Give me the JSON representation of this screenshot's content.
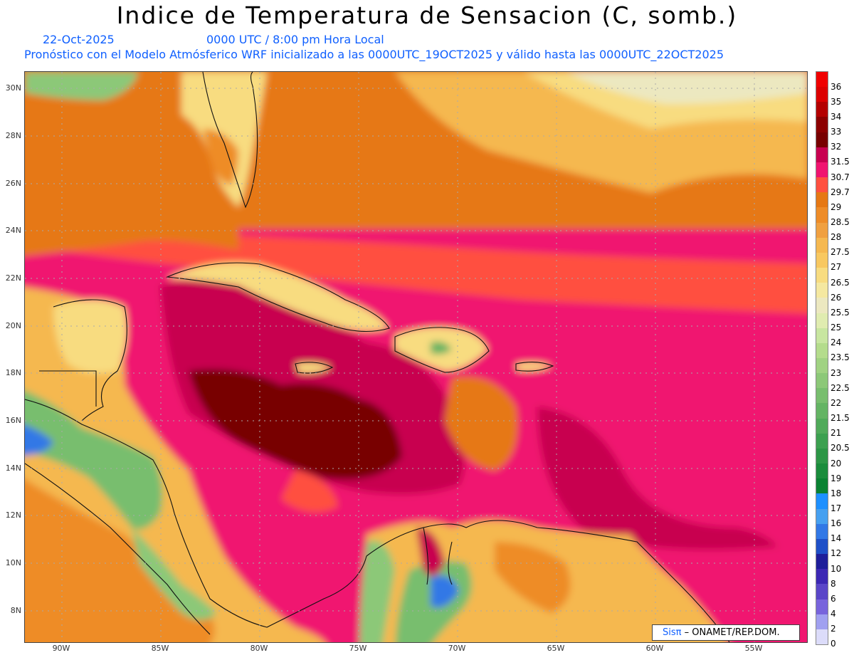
{
  "header": {
    "title": "Indice de Temperatura de Sensacion (C, somb.)",
    "date": "22-Oct-2025",
    "time": "0000 UTC / 8:00 pm Hora Local",
    "info": "Pronóstico con el Modelo Atmósferico WRF inicializado a las 0000UTC_19OCT2025 y válido hasta las  0000UTC_22OCT2025"
  },
  "map": {
    "lat_labels": [
      "30N",
      "28N",
      "26N",
      "24N",
      "22N",
      "20N",
      "18N",
      "16N",
      "14N",
      "12N",
      "10N",
      "8N"
    ],
    "lon_labels": [
      "90W",
      "85W",
      "80W",
      "75W",
      "70W",
      "65W",
      "60W",
      "55W"
    ],
    "gridlines": true
  },
  "colorbar": {
    "labels": [
      "36",
      "35",
      "34",
      "33",
      "32",
      "31.5",
      "30.7",
      "29.7",
      "29",
      "28.5",
      "28",
      "27.5",
      "27",
      "26.5",
      "26",
      "25.5",
      "25",
      "24",
      "23.5",
      "23",
      "22.5",
      "22",
      "21.5",
      "21",
      "20.5",
      "20",
      "19",
      "18",
      "17",
      "16",
      "14",
      "12",
      "10",
      "8",
      "6",
      "4",
      "2",
      "0"
    ],
    "colors": [
      "#f00000",
      "#dc0000",
      "#b40000",
      "#8c0000",
      "#780000",
      "#c80050",
      "#f01470",
      "#ff5040",
      "#e67814",
      "#ee8c28",
      "#f0a040",
      "#f5b850",
      "#f8c860",
      "#f8dc80",
      "#f5e8a0",
      "#ece8c0",
      "#e0ecb0",
      "#c8e6a0",
      "#b4dc8c",
      "#a0d282",
      "#8cc878",
      "#78be6e",
      "#64b464",
      "#50aa5a",
      "#3ca050",
      "#2c9646",
      "#1a8c3c",
      "#0a8232",
      "#1e90ff",
      "#46a0f0",
      "#3278e6",
      "#1e50c8",
      "#1e1e9a",
      "#3c28b4",
      "#5a46c8",
      "#7864dc",
      "#a0a0f0",
      "#dcdcfa"
    ],
    "value_shown": null
  },
  "credit": {
    "logo": "Sisπ",
    "text": "– ONAMET/REP.DOM."
  }
}
